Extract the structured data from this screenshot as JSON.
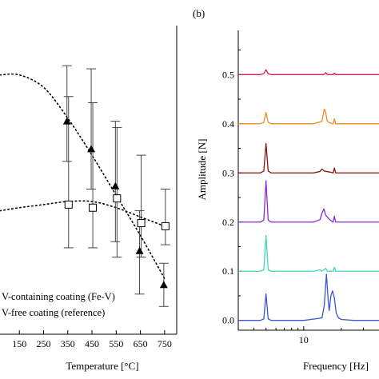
{
  "chart_data": [
    {
      "type": "scatter",
      "panel_label": "",
      "xlabel": "Temperature [°C]",
      "ylabel": "",
      "xlim": [
        70,
        800
      ],
      "ylim": [
        0,
        1
      ],
      "x_ticks": [
        150,
        250,
        350,
        450,
        550,
        650,
        750
      ],
      "x_tick_labels": [
        "150",
        "250",
        "350",
        "450",
        "550",
        "650",
        "750"
      ],
      "grid": false,
      "legend_position": "bottom-left",
      "series": [
        {
          "name": "V-containing coating (Fe-V)",
          "marker": "filled-triangle",
          "x": [
            350,
            450,
            550,
            650,
            750
          ],
          "y": [
            0.69,
            0.6,
            0.48,
            0.27,
            0.16
          ],
          "err_low": [
            0.56,
            0.47,
            0.3,
            0.13,
            0.09
          ],
          "err_high": [
            0.87,
            0.86,
            0.69,
            0.4,
            0.23
          ],
          "fit": {
            "style": "dotted",
            "x": [
              70,
              150,
              250,
              350,
              450,
              550,
              650,
              750
            ],
            "y": [
              0.84,
              0.84,
              0.8,
              0.7,
              0.58,
              0.45,
              0.32,
              0.18
            ]
          }
        },
        {
          "name": "V-free coating (reference)",
          "marker": "open-square",
          "x": [
            350,
            450,
            550,
            650,
            750
          ],
          "y": [
            0.42,
            0.41,
            0.44,
            0.36,
            0.35
          ],
          "err_low": [
            0.28,
            0.28,
            0.25,
            0.25,
            0.29
          ],
          "err_high": [
            0.77,
            0.75,
            0.67,
            0.58,
            0.47
          ],
          "fit": {
            "style": "dotted",
            "x": [
              70,
              150,
              250,
              350,
              450,
              550,
              650,
              750
            ],
            "y": [
              0.4,
              0.41,
              0.42,
              0.43,
              0.43,
              0.41,
              0.38,
              0.35
            ]
          }
        }
      ]
    },
    {
      "type": "line",
      "panel_label": "(b)",
      "xlabel": "Frequency [Hz]",
      "ylabel": "Amplitude [N]",
      "x_scale": "log",
      "xlim": [
        3,
        40
      ],
      "ylim": [
        -0.02,
        0.59
      ],
      "x_ticks": [
        10
      ],
      "x_tick_labels": [
        "10"
      ],
      "y_ticks": [
        0.0,
        0.1,
        0.2,
        0.3,
        0.4,
        0.5
      ],
      "y_tick_labels": [
        "0.0",
        "0.1",
        "0.2",
        "0.3",
        "0.4",
        "0.5"
      ],
      "grid": false,
      "series": [
        {
          "baseline": 0.0,
          "color": "#3a55d6",
          "x": [
            3,
            4.5,
            4.8,
            5.0,
            5.2,
            5.5,
            10,
            14,
            14.6,
            15.2,
            15.7,
            16.0,
            16.5,
            17.0,
            17.6,
            18.2,
            19,
            20,
            25,
            40
          ],
          "y": [
            0.0,
            0.0,
            0.003,
            0.054,
            0.003,
            0.0,
            0.0,
            0.005,
            0.03,
            0.094,
            0.04,
            0.02,
            0.05,
            0.06,
            0.045,
            0.015,
            0.005,
            0.002,
            0.0,
            0.0
          ]
        },
        {
          "baseline": 0.1,
          "color": "#43d8b0",
          "x": [
            3,
            4.5,
            4.8,
            5.0,
            5.2,
            5.5,
            12,
            13.5,
            14,
            15,
            15.5,
            16,
            17.2,
            17.6,
            18,
            20,
            40
          ],
          "y": [
            0.1,
            0.1,
            0.103,
            0.173,
            0.103,
            0.1,
            0.1,
            0.103,
            0.1,
            0.106,
            0.1,
            0.1,
            0.1,
            0.108,
            0.1,
            0.1,
            0.1
          ]
        },
        {
          "baseline": 0.2,
          "color": "#8a2bd6",
          "x": [
            3,
            4.5,
            4.8,
            5.0,
            5.2,
            5.5,
            12,
            13.5,
            14,
            14.5,
            15,
            15.5,
            16,
            16.5,
            17.2,
            17.6,
            18,
            20,
            40
          ],
          "y": [
            0.2,
            0.2,
            0.204,
            0.284,
            0.204,
            0.2,
            0.2,
            0.205,
            0.218,
            0.227,
            0.214,
            0.21,
            0.206,
            0.203,
            0.2,
            0.212,
            0.2,
            0.2,
            0.2
          ]
        },
        {
          "baseline": 0.3,
          "color": "#8b1010",
          "x": [
            3,
            4.5,
            4.8,
            5.0,
            5.2,
            5.5,
            12,
            13.5,
            14,
            14.6,
            15.2,
            16,
            17.2,
            17.6,
            18,
            20,
            40
          ],
          "y": [
            0.3,
            0.3,
            0.304,
            0.36,
            0.304,
            0.3,
            0.3,
            0.303,
            0.308,
            0.304,
            0.303,
            0.302,
            0.3,
            0.31,
            0.3,
            0.3,
            0.3
          ]
        },
        {
          "baseline": 0.4,
          "color": "#f08a24",
          "x": [
            3,
            4.5,
            4.8,
            5.0,
            5.2,
            5.5,
            12,
            14,
            14.6,
            15.0,
            15.4,
            16,
            17.2,
            17.6,
            18,
            20,
            40
          ],
          "y": [
            0.4,
            0.4,
            0.403,
            0.423,
            0.403,
            0.4,
            0.4,
            0.405,
            0.43,
            0.423,
            0.406,
            0.402,
            0.4,
            0.41,
            0.4,
            0.4,
            0.4
          ]
        },
        {
          "baseline": 0.5,
          "color": "#d81b50",
          "x": [
            3,
            4.5,
            4.8,
            5.0,
            5.2,
            5.5,
            12,
            14.5,
            15,
            15.5,
            17.2,
            17.6,
            18,
            20,
            40
          ],
          "y": [
            0.5,
            0.5,
            0.502,
            0.51,
            0.502,
            0.5,
            0.5,
            0.5,
            0.504,
            0.5,
            0.5,
            0.503,
            0.5,
            0.5,
            0.5
          ]
        }
      ]
    }
  ]
}
